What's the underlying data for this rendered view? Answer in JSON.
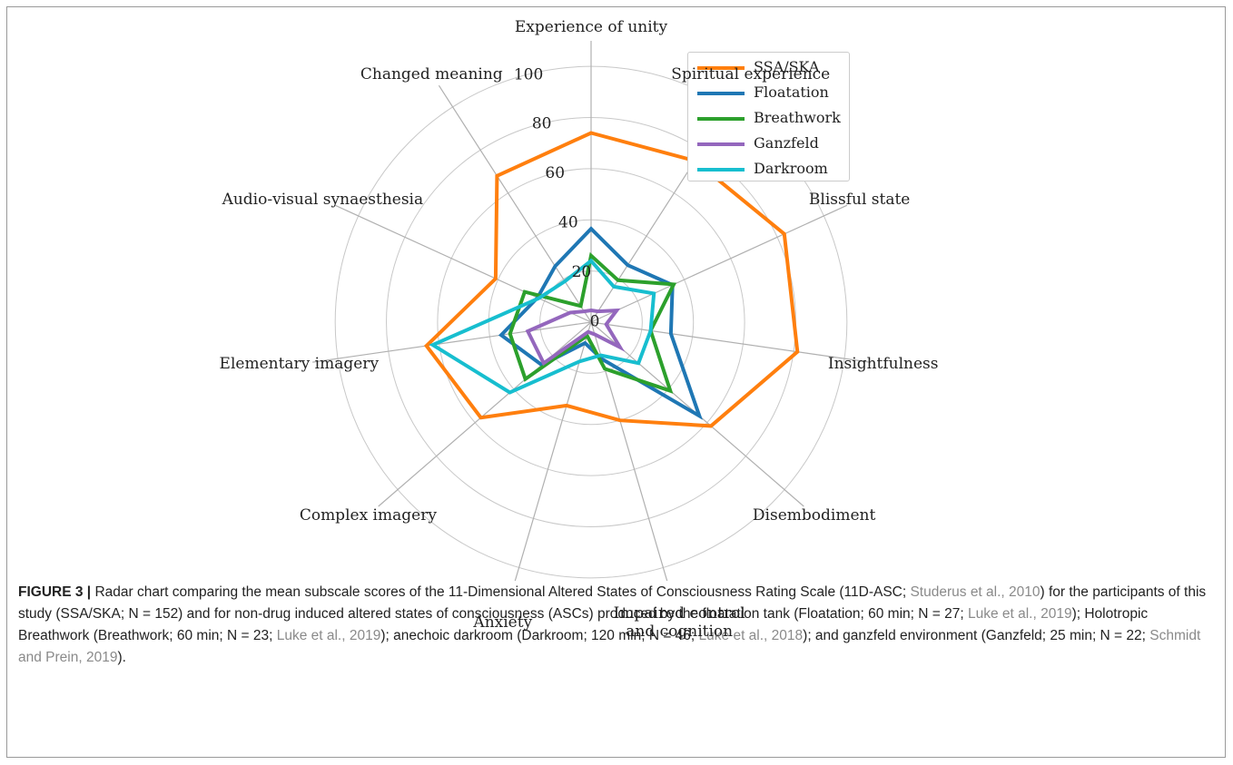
{
  "chart_data": {
    "type": "radar",
    "categories": [
      "Experience of unity",
      "Spiritual experience",
      "Blissful state",
      "Insightfulness",
      "Disembodiment",
      "Impaired control\nand cognition",
      "Anxiety",
      "Complex imagery",
      "Elementary imagery",
      "Audio-visual synaesthesia",
      "Changed meaning"
    ],
    "series": [
      {
        "name": "SSA/SKA",
        "color": "#ff7f0e",
        "values": [
          74,
          75,
          83,
          81.5,
          62,
          40,
          34,
          57,
          65,
          41,
          68
        ]
      },
      {
        "name": "Floatation",
        "color": "#1f77b4",
        "values": [
          36.5,
          26.5,
          35,
          31.5,
          56,
          15,
          8.5,
          25.5,
          35.5,
          23,
          26
        ]
      },
      {
        "name": "Breathwork",
        "color": "#2ca02c",
        "values": [
          26,
          19.5,
          35.5,
          23.5,
          41,
          19,
          5.5,
          34,
          32,
          28.5,
          7.5
        ]
      },
      {
        "name": "Ganzfeld",
        "color": "#9467bd",
        "values": [
          4.6,
          5,
          11,
          6,
          15,
          5,
          4,
          24.5,
          25,
          9,
          5
        ]
      },
      {
        "name": "Darkroom",
        "color": "#17becf",
        "values": [
          24,
          16.5,
          27,
          23.5,
          24.5,
          13.5,
          16,
          42,
          62.5,
          22.5,
          19
        ]
      }
    ],
    "ylim": [
      0,
      110
    ],
    "yticks": [
      0,
      20,
      40,
      60,
      80,
      100
    ],
    "grid": true,
    "legend": "upper right"
  },
  "caption": {
    "label": "FIGURE 3 |",
    "text": [
      "Radar chart comparing the mean subscale scores of the 11-Dimensional Altered States of Consciousness Rating Scale (11D-ASC; ",
      "Studerus et al., 2010",
      ") for the participants of this study (SSA/SKA; N = 152) and for non-drug induced altered states of consciousness (ASCs) produced by the floatation tank (Floatation; 60 min; N = 27; ",
      "Luke et al., 2019",
      "); Holotropic Breathwork (Breathwork; 60 min; N = 23; ",
      "Luke et al., 2019",
      "); anechoic darkroom (Darkroom; 120 min; N = 46; ",
      "Luke et al., 2018",
      "); and ganzfeld environment (Ganzfeld; 25 min; N = 22; ",
      "Schmidt and Prein, 2019",
      ")."
    ]
  }
}
